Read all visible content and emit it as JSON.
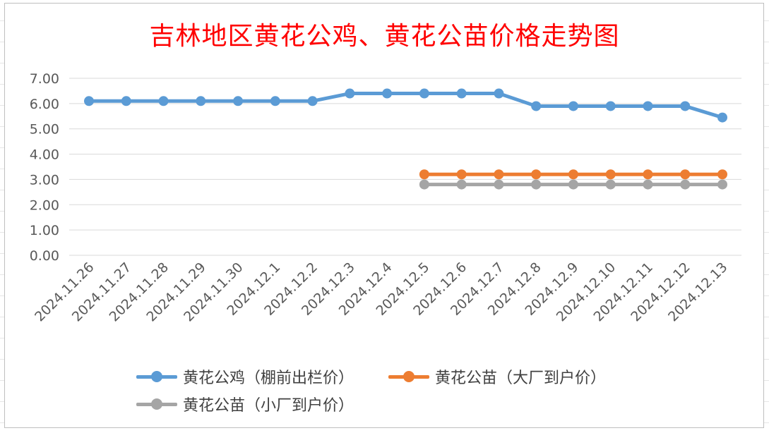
{
  "chart_data": {
    "type": "line",
    "title": "吉林地区黄花公鸡、黄花公苗价格走势图",
    "categories": [
      "2024.11.26",
      "2024.11.27",
      "2024.11.28",
      "2024.11.29",
      "2024.11.30",
      "2024.12.1",
      "2024.12.2",
      "2024.12.3",
      "2024.12.4",
      "2024.12.5",
      "2024.12.6",
      "2024.12.7",
      "2024.12.8",
      "2024.12.9",
      "2024.12.10",
      "2024.12.11",
      "2024.12.12",
      "2024.12.13"
    ],
    "ylim": [
      0,
      7
    ],
    "yticks": [
      "0.00",
      "1.00",
      "2.00",
      "3.00",
      "4.00",
      "5.00",
      "6.00",
      "7.00"
    ],
    "grid": "horizontal",
    "legend_position": "bottom",
    "series": [
      {
        "name": "黄花公鸡（棚前出栏价）",
        "color": "#5b9bd5",
        "values": [
          6.1,
          6.1,
          6.1,
          6.1,
          6.1,
          6.1,
          6.1,
          6.4,
          6.4,
          6.4,
          6.4,
          6.4,
          5.9,
          5.9,
          5.9,
          5.9,
          5.9,
          5.45
        ]
      },
      {
        "name": "黄花公苗（大厂到户价）",
        "color": "#ed7d31",
        "values": [
          null,
          null,
          null,
          null,
          null,
          null,
          null,
          null,
          null,
          3.2,
          3.2,
          3.2,
          3.2,
          3.2,
          3.2,
          3.2,
          3.2,
          3.2
        ]
      },
      {
        "name": "黄花公苗（小厂到户价）",
        "color": "#a5a5a5",
        "values": [
          null,
          null,
          null,
          null,
          null,
          null,
          null,
          null,
          null,
          2.8,
          2.8,
          2.8,
          2.8,
          2.8,
          2.8,
          2.8,
          2.8,
          2.8
        ]
      }
    ]
  }
}
